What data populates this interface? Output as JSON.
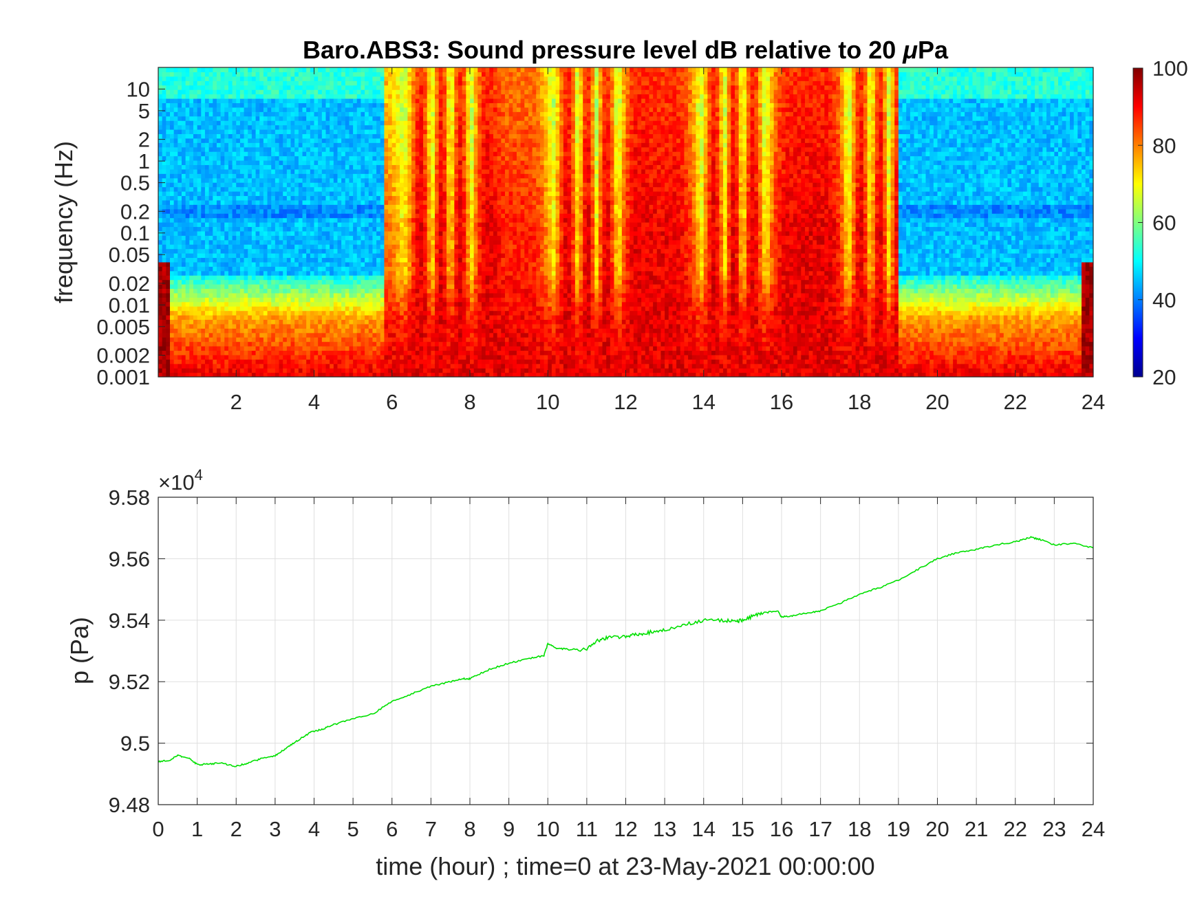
{
  "chart_data": [
    {
      "type": "heatmap",
      "title_main": "Baro.ABS3: Sound pressure level dB relative to 20 ",
      "title_mu": "μ",
      "title_tail": "Pa",
      "ylabel": "frequency (Hz)",
      "xlabel": "",
      "x_range": [
        0,
        24
      ],
      "x_ticks": [
        2,
        4,
        6,
        8,
        10,
        12,
        14,
        16,
        18,
        20,
        22,
        24
      ],
      "y_scale": "log",
      "y_range": [
        0.001,
        20
      ],
      "y_ticks": [
        "0.001",
        "0.002",
        "0.005",
        "0.01",
        "0.02",
        "0.05",
        "0.1",
        "0.2",
        "0.5",
        "1",
        "2",
        "5",
        "10"
      ],
      "colorbar": {
        "range": [
          20,
          100
        ],
        "ticks": [
          "20",
          "40",
          "60",
          "80",
          "100"
        ],
        "colormap": "jet"
      },
      "activity_windows_hours": [
        [
          5.8,
          19.0
        ]
      ],
      "notes_visual": "quiet periods 0–5.8 h and 19–24 h show ~40–50 dB above 0.05 Hz; 5.8–19 h shows broadband 70–95 dB with vertical bursts; lowest frequencies ~85–100 dB throughout"
    },
    {
      "type": "line",
      "ylabel": "p (Pa)",
      "xlabel": "time (hour) ; time=0 at 23-May-2021 00:00:00",
      "exponent_label": "×10",
      "exponent_power": "4",
      "x_range": [
        0,
        24
      ],
      "x_ticks": [
        "0",
        "1",
        "2",
        "3",
        "4",
        "5",
        "6",
        "7",
        "8",
        "9",
        "10",
        "11",
        "12",
        "13",
        "14",
        "15",
        "16",
        "17",
        "18",
        "19",
        "20",
        "21",
        "22",
        "23",
        "24"
      ],
      "y_range": [
        94800,
        95800
      ],
      "y_ticks": [
        "9.48",
        "9.5",
        "9.52",
        "9.54",
        "9.56",
        "9.58"
      ],
      "grid": true,
      "line_color": "#00e000",
      "series": [
        {
          "x": [
            0,
            0.3,
            0.5,
            0.8,
            1.0,
            1.3,
            1.6,
            2.0,
            2.3,
            2.6,
            3.0,
            3.3,
            3.6,
            3.9,
            4.2,
            4.5,
            5.0,
            5.5,
            6.0,
            6.5,
            7.0,
            7.5,
            7.8,
            8.0,
            8.5,
            9.0,
            9.5,
            9.9,
            10.0,
            10.2,
            10.5,
            11.0,
            11.3,
            11.6,
            12.0,
            12.3,
            12.6,
            13.0,
            13.5,
            14.0,
            14.5,
            14.8,
            15.0,
            15.3,
            15.6,
            15.9,
            16.0,
            16.3,
            16.7,
            17.0,
            17.5,
            18.0,
            18.5,
            19.0,
            19.5,
            20.0,
            20.5,
            21.0,
            21.5,
            22.0,
            22.4,
            22.7,
            23.0,
            23.5,
            24.0
          ],
          "y": [
            94940,
            94945,
            94960,
            94950,
            94930,
            94932,
            94935,
            94925,
            94935,
            94948,
            94960,
            94985,
            95010,
            95035,
            95045,
            95060,
            95080,
            95095,
            95135,
            95160,
            95185,
            95200,
            95210,
            95210,
            95240,
            95260,
            95275,
            95285,
            95325,
            95310,
            95305,
            95305,
            95335,
            95345,
            95345,
            95355,
            95360,
            95370,
            95385,
            95400,
            95400,
            95395,
            95400,
            95415,
            95425,
            95430,
            95410,
            95415,
            95425,
            95430,
            95455,
            95485,
            95505,
            95530,
            95565,
            95600,
            95620,
            95630,
            95645,
            95655,
            95670,
            95660,
            95645,
            95650,
            95635
          ]
        }
      ]
    }
  ]
}
